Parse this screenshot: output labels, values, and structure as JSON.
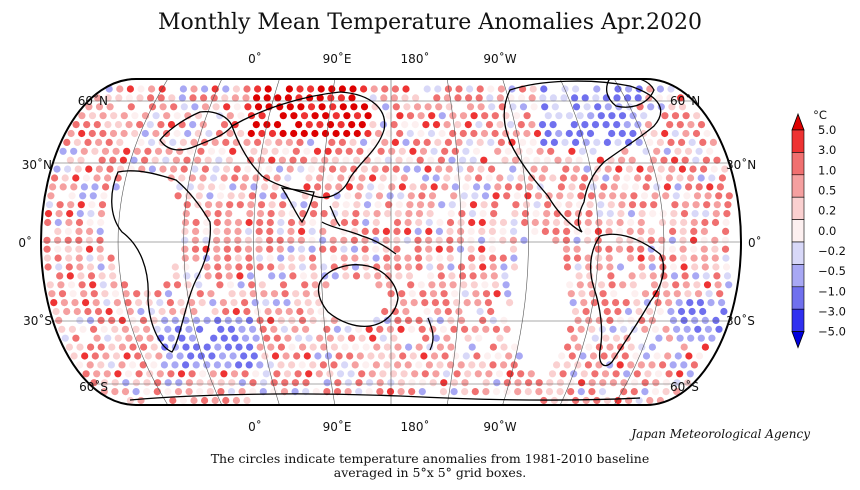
{
  "title": "Monthly Mean Temperature Anomalies Apr.2020",
  "agency": "Japan Meteorological Agency",
  "caption": {
    "line1": "The circles indicate temperature anomalies from 1981-2010 baseline",
    "line2": "averaged in 5°x 5° grid boxes."
  },
  "map": {
    "top_lon_labels": [
      "0˚",
      "90˚E",
      "180˚",
      "90˚W"
    ],
    "bottom_lon_labels": [
      "0˚",
      "90˚E",
      "180˚",
      "90˚W"
    ],
    "left_lat_labels": [
      "60˚N",
      "30˚N",
      "0˚",
      "30˚S",
      "60˚S"
    ],
    "right_lat_labels": [
      "60˚N",
      "30˚N",
      "0˚",
      "30˚S",
      "60˚S"
    ]
  },
  "colorbar": {
    "unit": "°C",
    "levels": [
      "5.0",
      "3.0",
      "1.0",
      "0.5",
      "0.2",
      "0.0",
      "−0.2",
      "−0.5",
      "−1.0",
      "−3.0",
      "−5.0"
    ],
    "colors": [
      "#dd0000",
      "#ee3333",
      "#f07070",
      "#f5a0a0",
      "#fad0d0",
      "#fdf0f0",
      "#d8d8f8",
      "#a8a8f4",
      "#7070ee",
      "#3030f0",
      "#0000dd"
    ]
  }
}
